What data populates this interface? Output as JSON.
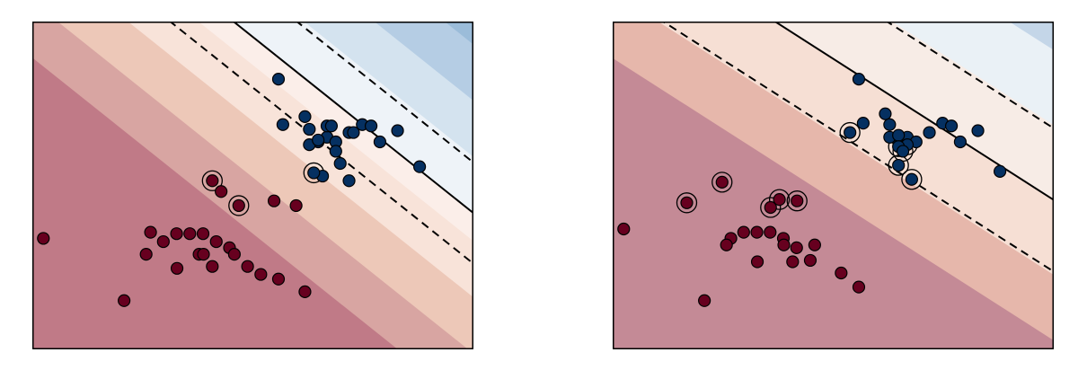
{
  "chart_data": [
    {
      "type": "scatter",
      "title": "",
      "xlabel": "",
      "ylabel": "",
      "xticks": [],
      "yticks": [],
      "grid": false,
      "legend": "none",
      "xlim": [
        0,
        10
      ],
      "ylim": [
        0,
        7
      ],
      "colors": {
        "class_a": "#67001f",
        "class_b": "#053061",
        "edge": "#000000"
      },
      "decision_boundary": {
        "slope": -0.752,
        "intercept": 10.43,
        "margin": 1.08
      },
      "contour_fill": {
        "offsets": [
          -4.2,
          -3.0,
          -1.8,
          -0.6,
          0,
          1.2,
          2.4,
          3.6
        ],
        "colors": [
          "#c07a87",
          "#d8a5a2",
          "#edc8b8",
          "#f8e3d9",
          "#fbeee9",
          "#eef3f8",
          "#d4e3ef",
          "#b5cde4",
          "#9bbcd9"
        ]
      },
      "series": [
        {
          "class": "A",
          "x": [
            0.25,
            2.08,
            2.68,
            2.97,
            3.27,
            3.57,
            3.87,
            4.17,
            4.47,
            3.78,
            2.58,
            3.88,
            4.58,
            3.28,
            4.08,
            4.88,
            5.18,
            5.58,
            6.18,
            5.98,
            4.28,
            5.48
          ],
          "y": [
            2.37,
            1.04,
            2.5,
            2.3,
            2.47,
            2.47,
            2.47,
            2.3,
            2.17,
            2.03,
            2.03,
            2.03,
            2.03,
            1.73,
            1.77,
            1.77,
            1.6,
            1.5,
            1.23,
            3.07,
            3.37,
            3.17
          ]
        },
        {
          "class": "B",
          "x": [
            5.58,
            5.68,
            6.18,
            6.28,
            6.48,
            6.68,
            6.88,
            7.18,
            7.48,
            7.68,
            7.88,
            6.28,
            6.48,
            6.68,
            6.88,
            7.28,
            8.28,
            8.78,
            6.98,
            7.18,
            6.58,
            6.78
          ],
          "y": [
            5.77,
            4.8,
            4.97,
            4.7,
            4.43,
            4.53,
            4.43,
            4.63,
            4.8,
            4.77,
            4.43,
            4.37,
            4.47,
            4.77,
            4.23,
            4.63,
            4.67,
            3.9,
            3.97,
            3.6,
            3.7,
            4.77
          ]
        }
      ],
      "support_vectors": [
        {
          "x": 4.08,
          "y": 3.6,
          "class": "A"
        },
        {
          "x": 4.68,
          "y": 3.07,
          "class": "A"
        },
        {
          "x": 6.38,
          "y": 3.77,
          "class": "B"
        }
      ]
    },
    {
      "type": "scatter",
      "title": "",
      "xlabel": "",
      "ylabel": "",
      "xticks": [],
      "yticks": [],
      "grid": false,
      "legend": "none",
      "xlim": [
        0,
        10
      ],
      "ylim": [
        0,
        7
      ],
      "colors": {
        "class_a": "#67001f",
        "class_b": "#053061",
        "edge": "#000000"
      },
      "decision_boundary": {
        "slope": -0.603,
        "intercept": 9.22,
        "margin": 1.53
      },
      "contour_fill": {
        "offsets": [
          -3.0,
          -1.6,
          0,
          1.6,
          3.2,
          4.4
        ],
        "colors": [
          "#c48a96",
          "#e6b7ab",
          "#f6dfd4",
          "#f7ece6",
          "#eaf1f6",
          "#c4d6e8",
          "#a9c2dc",
          "#8faacb"
        ]
      },
      "series": [
        {
          "class": "A",
          "x": [
            0.25,
            2.08,
            2.68,
            2.97,
            3.27,
            3.57,
            3.87,
            4.17,
            2.58,
            3.88,
            4.58,
            3.28,
            4.08,
            4.48,
            5.18,
            5.58
          ],
          "y": [
            2.57,
            1.04,
            2.37,
            2.5,
            2.5,
            2.5,
            2.37,
            2.17,
            2.23,
            2.23,
            2.23,
            1.87,
            1.87,
            1.9,
            1.63,
            1.33
          ]
        },
        {
          "class": "B",
          "x": [
            5.58,
            5.68,
            6.18,
            6.28,
            6.48,
            6.68,
            6.88,
            7.18,
            7.48,
            7.68,
            7.88,
            6.28,
            6.48,
            8.28,
            8.78
          ],
          "y": [
            5.77,
            4.83,
            5.03,
            4.8,
            4.43,
            4.53,
            4.43,
            4.63,
            4.83,
            4.77,
            4.43,
            4.53,
            4.57,
            4.67,
            3.8
          ]
        }
      ],
      "support_vectors": [
        {
          "x": 1.68,
          "y": 3.13,
          "class": "A"
        },
        {
          "x": 4.18,
          "y": 3.17,
          "class": "A"
        },
        {
          "x": 2.48,
          "y": 3.57,
          "class": "A"
        },
        {
          "x": 3.58,
          "y": 3.03,
          "class": "A"
        },
        {
          "x": 3.78,
          "y": 3.2,
          "class": "A"
        },
        {
          "x": 5.38,
          "y": 4.63,
          "class": "B"
        },
        {
          "x": 6.68,
          "y": 4.37,
          "class": "B"
        },
        {
          "x": 6.48,
          "y": 3.93,
          "class": "B"
        },
        {
          "x": 6.48,
          "y": 4.33,
          "class": "B"
        },
        {
          "x": 6.78,
          "y": 3.63,
          "class": "B"
        },
        {
          "x": 6.58,
          "y": 4.23,
          "class": "B"
        }
      ]
    }
  ]
}
